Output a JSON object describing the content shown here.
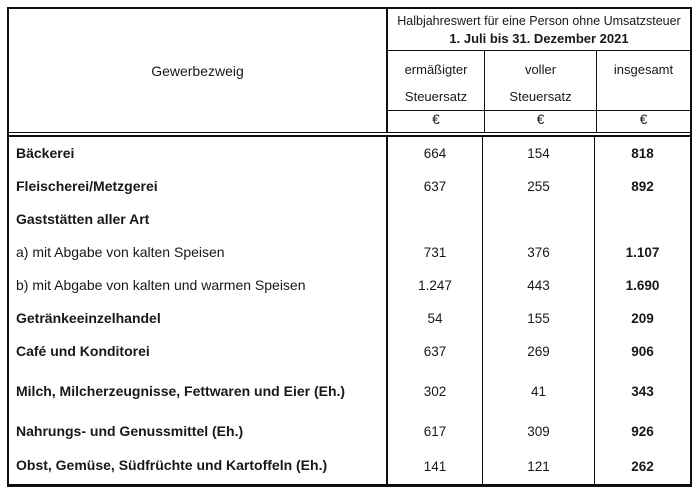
{
  "colors": {
    "border": "#0d0d12",
    "text": "#17171f",
    "background": "#ffffff"
  },
  "table": {
    "corner_header": "Gewerbezweig",
    "group_header": {
      "line1": "Halbjahreswert für eine Person ohne Umsatzsteuer",
      "line2": "1. Juli bis 31. Dezember 2021"
    },
    "columns": [
      {
        "label_line1": "ermäßigter",
        "label_line2": "Steuersatz",
        "unit": "€"
      },
      {
        "label_line1": "voller",
        "label_line2": "Steuersatz",
        "unit": "€"
      },
      {
        "label_line1": "insgesamt",
        "label_line2": "",
        "unit": "€"
      }
    ],
    "rows": [
      {
        "label": "Bäckerei",
        "sub_item": false,
        "ermaessigter": "664",
        "voller": "154",
        "insgesamt": "818"
      },
      {
        "label": "Fleischerei/Metzgerei",
        "sub_item": false,
        "ermaessigter": "637",
        "voller": "255",
        "insgesamt": "892"
      },
      {
        "label": "Gaststätten aller Art",
        "sub_item": false,
        "ermaessigter": "",
        "voller": "",
        "insgesamt": ""
      },
      {
        "label": "a) mit Abgabe von kalten Speisen",
        "sub_item": true,
        "ermaessigter": "731",
        "voller": "376",
        "insgesamt": "1.107"
      },
      {
        "label": "b) mit Abgabe von kalten und warmen Speisen",
        "sub_item": true,
        "ermaessigter": "1.247",
        "voller": "443",
        "insgesamt": "1.690"
      },
      {
        "label": "Getränkeeinzelhandel",
        "sub_item": false,
        "ermaessigter": "54",
        "voller": "155",
        "insgesamt": "209"
      },
      {
        "label": "Café und Konditorei",
        "sub_item": false,
        "ermaessigter": "637",
        "voller": "269",
        "insgesamt": "906"
      },
      {
        "label": "Milch, Milcherzeugnisse, Fettwaren und Eier (Eh.)",
        "sub_item": false,
        "ermaessigter": "302",
        "voller": "41",
        "insgesamt": "343"
      },
      {
        "label": "Nahrungs- und Genussmittel (Eh.)",
        "sub_item": false,
        "ermaessigter": "617",
        "voller": "309",
        "insgesamt": "926"
      },
      {
        "label": "Obst, Gemüse, Südfrüchte und Kartoffeln (Eh.)",
        "sub_item": false,
        "ermaessigter": "141",
        "voller": "121",
        "insgesamt": "262"
      }
    ]
  }
}
